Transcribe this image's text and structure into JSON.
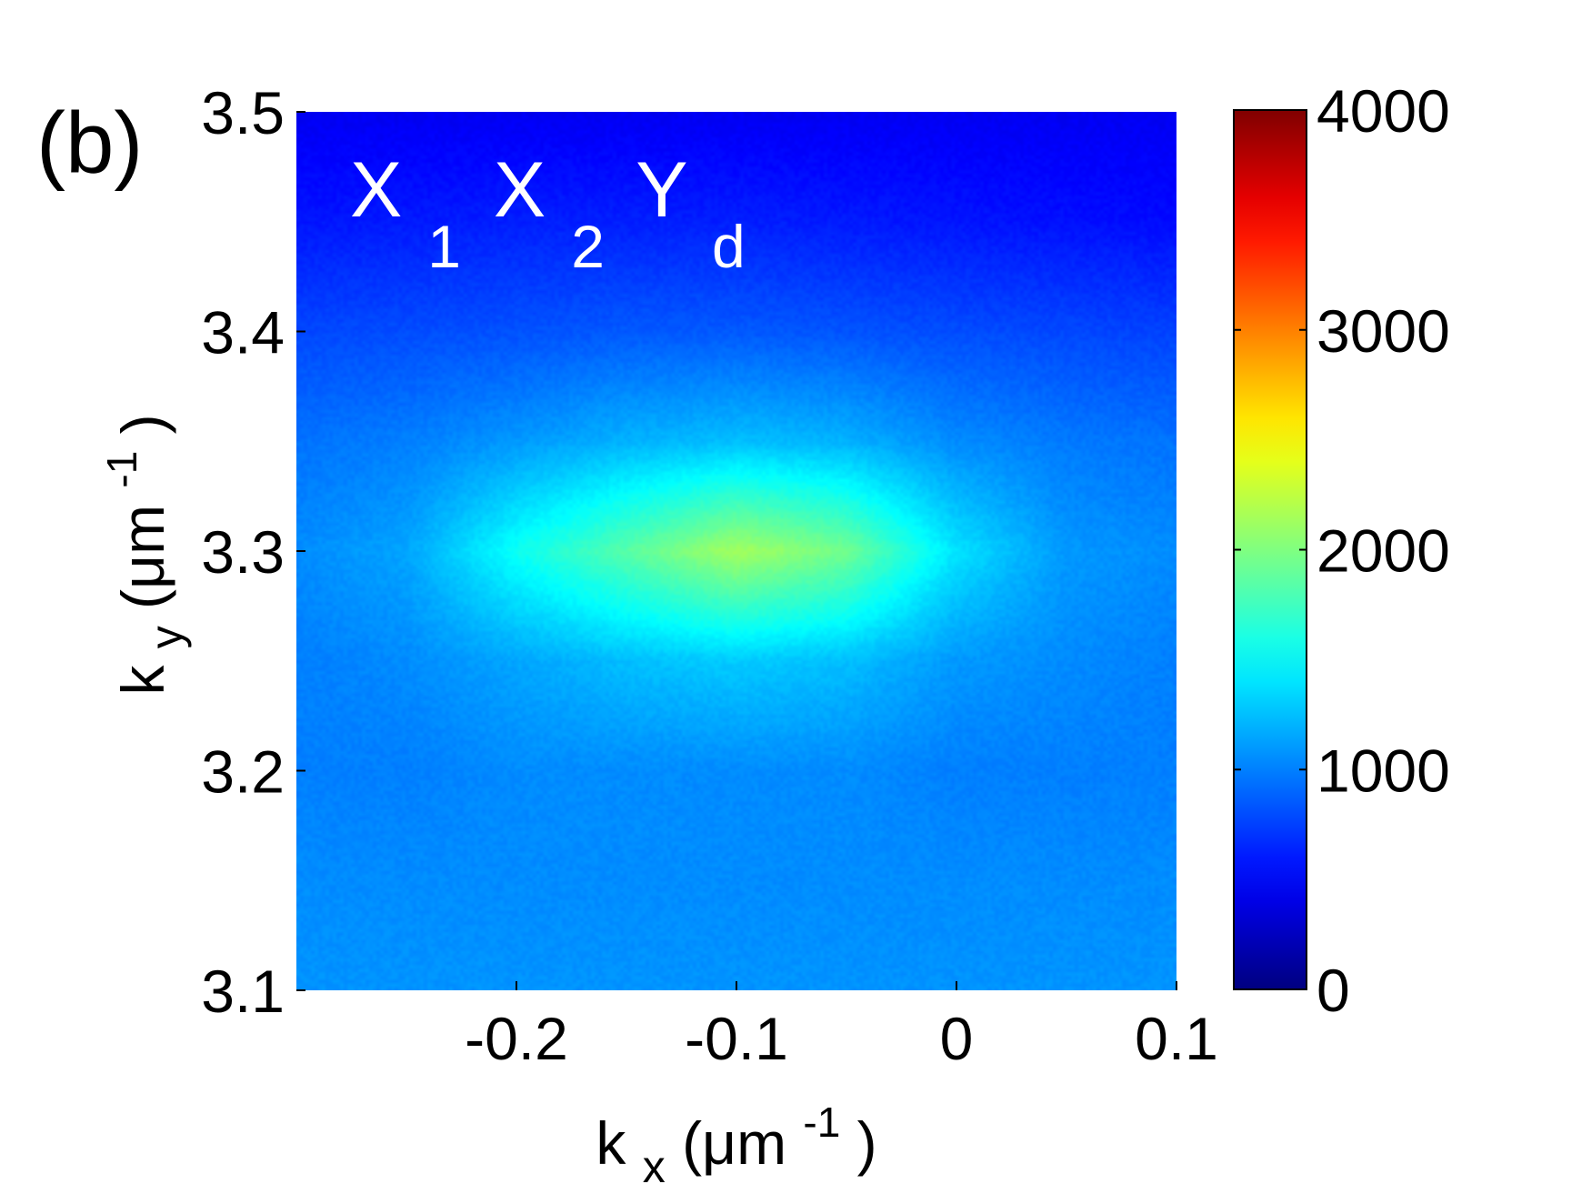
{
  "panel_label": "(b)",
  "chart_data": {
    "type": "heatmap",
    "title": "",
    "xlabel": {
      "main": "k",
      "sub": "x",
      "unit_pre": " (μm",
      "sup": "-1",
      "unit_post": ")"
    },
    "ylabel": {
      "main": "k",
      "sub": "y",
      "unit_pre": " (μm",
      "sup": "-1",
      "unit_post": ")"
    },
    "xlim": [
      -0.3,
      0.1
    ],
    "ylim": [
      3.1,
      3.5
    ],
    "xticks": [
      -0.2,
      -0.1,
      0,
      0.1
    ],
    "xtick_labels": [
      "-0.2",
      "-0.1",
      "0",
      "0.1"
    ],
    "yticks": [
      3.1,
      3.2,
      3.3,
      3.4,
      3.5
    ],
    "ytick_labels": [
      "3.1",
      "3.2",
      "3.3",
      "3.4",
      "3.5"
    ],
    "colorbar": {
      "range": [
        0,
        4000
      ],
      "ticks": [
        0,
        1000,
        2000,
        3000,
        4000
      ],
      "tick_labels": [
        "0",
        "1000",
        "2000",
        "3000",
        "4000"
      ],
      "colormap": "jet"
    },
    "annotation": [
      {
        "main": "X",
        "sub": "1"
      },
      {
        "main": "X",
        "sub": "2"
      },
      {
        "main": "Y",
        "sub": "d"
      }
    ],
    "peak": {
      "kx": -0.09,
      "ky": 3.305,
      "intensity": 2150
    },
    "intensity_map": {
      "x": [
        -0.3,
        -0.25,
        -0.2,
        -0.15,
        -0.1,
        -0.05,
        0,
        0.05,
        0.1
      ],
      "y": [
        3.5,
        3.45,
        3.4,
        3.35,
        3.3,
        3.25,
        3.2,
        3.15,
        3.1
      ],
      "z": [
        [
          450,
          450,
          450,
          450,
          450,
          450,
          450,
          450,
          450
        ],
        [
          580,
          600,
          620,
          620,
          620,
          600,
          580,
          560,
          540
        ],
        [
          780,
          800,
          820,
          850,
          850,
          830,
          800,
          780,
          760
        ],
        [
          950,
          1000,
          1100,
          1200,
          1250,
          1200,
          1050,
          980,
          950
        ],
        [
          1050,
          1150,
          1550,
          1850,
          2150,
          1950,
          1400,
          1100,
          1050
        ],
        [
          1000,
          1050,
          1150,
          1250,
          1300,
          1250,
          1100,
          1050,
          1000
        ],
        [
          1000,
          1000,
          1050,
          1050,
          1050,
          1050,
          1000,
          1000,
          1000
        ],
        [
          1050,
          1050,
          1050,
          1050,
          1050,
          1050,
          1050,
          1050,
          1050
        ],
        [
          1080,
          1080,
          1080,
          1080,
          1080,
          1080,
          1080,
          1080,
          1080
        ]
      ]
    }
  }
}
